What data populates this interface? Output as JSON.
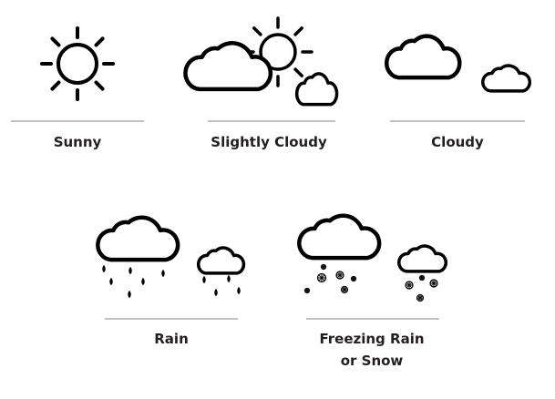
{
  "colors": {
    "stroke": "#000000",
    "divider": "#9e9e9e",
    "text": "#231f20"
  },
  "items": [
    {
      "label": "Sunny",
      "icon": "sun-icon"
    },
    {
      "label": "Slightly Cloudy",
      "icon": "partly-cloudy-icon"
    },
    {
      "label": "Cloudy",
      "icon": "cloud-icon"
    },
    {
      "label": "Rain",
      "icon": "rain-cloud-icon"
    },
    {
      "label_line1": "Freezing Rain",
      "label_line2": "or Snow",
      "icon": "snow-cloud-icon"
    }
  ]
}
